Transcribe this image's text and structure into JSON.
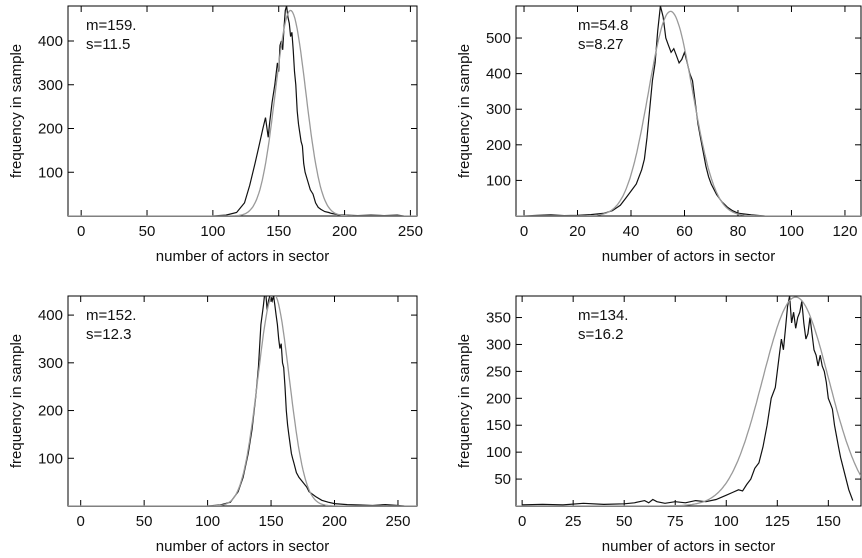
{
  "chart_data": [
    {
      "type": "line",
      "xlabel": "number of actors in sector",
      "ylabel": "frequency in sample",
      "xlim": [
        -10,
        255
      ],
      "ylim": [
        0,
        480
      ],
      "xticks": [
        0,
        50,
        100,
        150,
        200,
        250
      ],
      "yticks": [
        100,
        200,
        300,
        400
      ],
      "stats": {
        "m": "m=159.",
        "s": "s=11.5"
      },
      "series": [
        {
          "name": "",
          "style": "empirical",
          "x": [
            100,
            110,
            118,
            124,
            128,
            132,
            135,
            138,
            140,
            142,
            143,
            145,
            147,
            149,
            150,
            151,
            152,
            153,
            154,
            155,
            156,
            157,
            158,
            159,
            160,
            161,
            162,
            163,
            164,
            165,
            166,
            167,
            168,
            169,
            170,
            172,
            174,
            176,
            178,
            180,
            182,
            185,
            188,
            190,
            195,
            200,
            210,
            220,
            230,
            240,
            245
          ],
          "y": [
            0,
            2,
            8,
            30,
            70,
            120,
            160,
            200,
            225,
            180,
            210,
            260,
            300,
            350,
            330,
            390,
            400,
            380,
            430,
            470,
            480,
            455,
            440,
            410,
            420,
            380,
            330,
            300,
            240,
            210,
            190,
            170,
            160,
            120,
            100,
            80,
            60,
            50,
            30,
            20,
            15,
            10,
            8,
            6,
            3,
            2,
            1,
            2,
            1,
            2,
            0
          ]
        },
        {
          "name": "",
          "style": "gaussian",
          "mean": 159,
          "sd": 11.5,
          "peak": 470
        }
      ]
    },
    {
      "type": "line",
      "xlabel": "number of actors in sector",
      "ylabel": "frequency in sample",
      "xlim": [
        -3,
        126
      ],
      "ylim": [
        0,
        590
      ],
      "xticks": [
        0,
        20,
        40,
        60,
        80,
        100,
        120
      ],
      "yticks": [
        100,
        200,
        300,
        400,
        500
      ],
      "stats": {
        "m": "m=54.8",
        "s": "s=8.27"
      },
      "series": [
        {
          "name": "",
          "style": "empirical",
          "x": [
            0,
            5,
            10,
            15,
            20,
            25,
            30,
            33,
            36,
            38,
            40,
            42,
            44,
            45,
            46,
            47,
            48,
            49,
            50,
            51,
            52,
            53,
            54,
            55,
            56,
            57,
            58,
            59,
            60,
            61,
            62,
            63,
            64,
            65,
            66,
            67,
            68,
            69,
            70,
            72,
            74,
            76,
            78,
            80,
            85,
            90
          ],
          "y": [
            0,
            2,
            3,
            1,
            2,
            4,
            8,
            15,
            30,
            50,
            70,
            90,
            130,
            160,
            220,
            300,
            380,
            430,
            520,
            590,
            560,
            500,
            480,
            460,
            470,
            450,
            430,
            440,
            460,
            430,
            400,
            380,
            320,
            260,
            220,
            180,
            140,
            110,
            90,
            60,
            40,
            25,
            15,
            8,
            3,
            0
          ]
        },
        {
          "name": "",
          "style": "gaussian",
          "mean": 54.8,
          "sd": 8.27,
          "peak": 575
        }
      ]
    },
    {
      "type": "line",
      "xlabel": "number of actors in sector",
      "ylabel": "frequency in sample",
      "xlim": [
        -10,
        265
      ],
      "ylim": [
        0,
        440
      ],
      "xticks": [
        0,
        50,
        100,
        150,
        200,
        250
      ],
      "yticks": [
        100,
        200,
        300,
        400
      ],
      "stats": {
        "m": "m=152.",
        "s": "s=12.3"
      },
      "series": [
        {
          "name": "",
          "style": "empirical",
          "x": [
            100,
            110,
            118,
            124,
            128,
            132,
            135,
            138,
            140,
            142,
            144,
            145,
            146,
            147,
            148,
            149,
            150,
            151,
            152,
            153,
            154,
            155,
            156,
            157,
            158,
            159,
            160,
            161,
            162,
            163,
            164,
            165,
            166,
            167,
            168,
            170,
            172,
            175,
            178,
            180,
            185,
            190,
            195,
            200,
            210,
            220,
            230,
            240,
            250,
            255
          ],
          "y": [
            0,
            2,
            8,
            30,
            60,
            110,
            160,
            230,
            290,
            380,
            420,
            445,
            440,
            410,
            430,
            440,
            440,
            430,
            440,
            420,
            400,
            380,
            350,
            330,
            340,
            300,
            290,
            250,
            200,
            170,
            150,
            130,
            110,
            100,
            90,
            70,
            60,
            50,
            40,
            30,
            20,
            12,
            8,
            5,
            3,
            2,
            1,
            3,
            1,
            0
          ]
        },
        {
          "name": "",
          "style": "gaussian",
          "mean": 152,
          "sd": 12.3,
          "peak": 445
        }
      ]
    },
    {
      "type": "line",
      "xlabel": "number of actors in sector",
      "ylabel": "frequency in sample",
      "xlim": [
        -3,
        166
      ],
      "ylim": [
        0,
        390
      ],
      "xticks": [
        0,
        25,
        50,
        75,
        100,
        125,
        150
      ],
      "yticks": [
        50,
        100,
        150,
        200,
        250,
        300,
        350
      ],
      "stats": {
        "m": "m=134.",
        "s": "s=16.2"
      },
      "series": [
        {
          "name": "",
          "style": "empirical",
          "x": [
            0,
            10,
            20,
            30,
            40,
            50,
            55,
            60,
            62,
            64,
            66,
            70,
            75,
            80,
            85,
            90,
            95,
            100,
            103,
            106,
            108,
            110,
            112,
            114,
            116,
            118,
            120,
            122,
            124,
            126,
            127,
            128,
            129,
            130,
            131,
            132,
            133,
            134,
            135,
            136,
            137,
            138,
            139,
            140,
            141,
            142,
            143,
            144,
            145,
            146,
            147,
            148,
            149,
            150,
            151,
            152,
            153,
            154,
            155,
            156,
            158,
            160,
            162
          ],
          "y": [
            2,
            3,
            2,
            5,
            3,
            4,
            6,
            10,
            6,
            12,
            8,
            5,
            8,
            6,
            10,
            8,
            12,
            20,
            25,
            30,
            28,
            40,
            50,
            70,
            80,
            110,
            150,
            200,
            220,
            280,
            310,
            290,
            330,
            370,
            390,
            340,
            360,
            330,
            350,
            360,
            380,
            340,
            310,
            320,
            350,
            320,
            290,
            280,
            260,
            280,
            260,
            250,
            230,
            200,
            190,
            180,
            150,
            130,
            110,
            90,
            60,
            30,
            10
          ]
        },
        {
          "name": "",
          "style": "gaussian",
          "mean": 134,
          "sd": 16.2,
          "peak": 388
        }
      ]
    }
  ],
  "colors": {
    "empirical": "#111111",
    "gaussian": "#9a9a9a",
    "axis": "#000000"
  }
}
